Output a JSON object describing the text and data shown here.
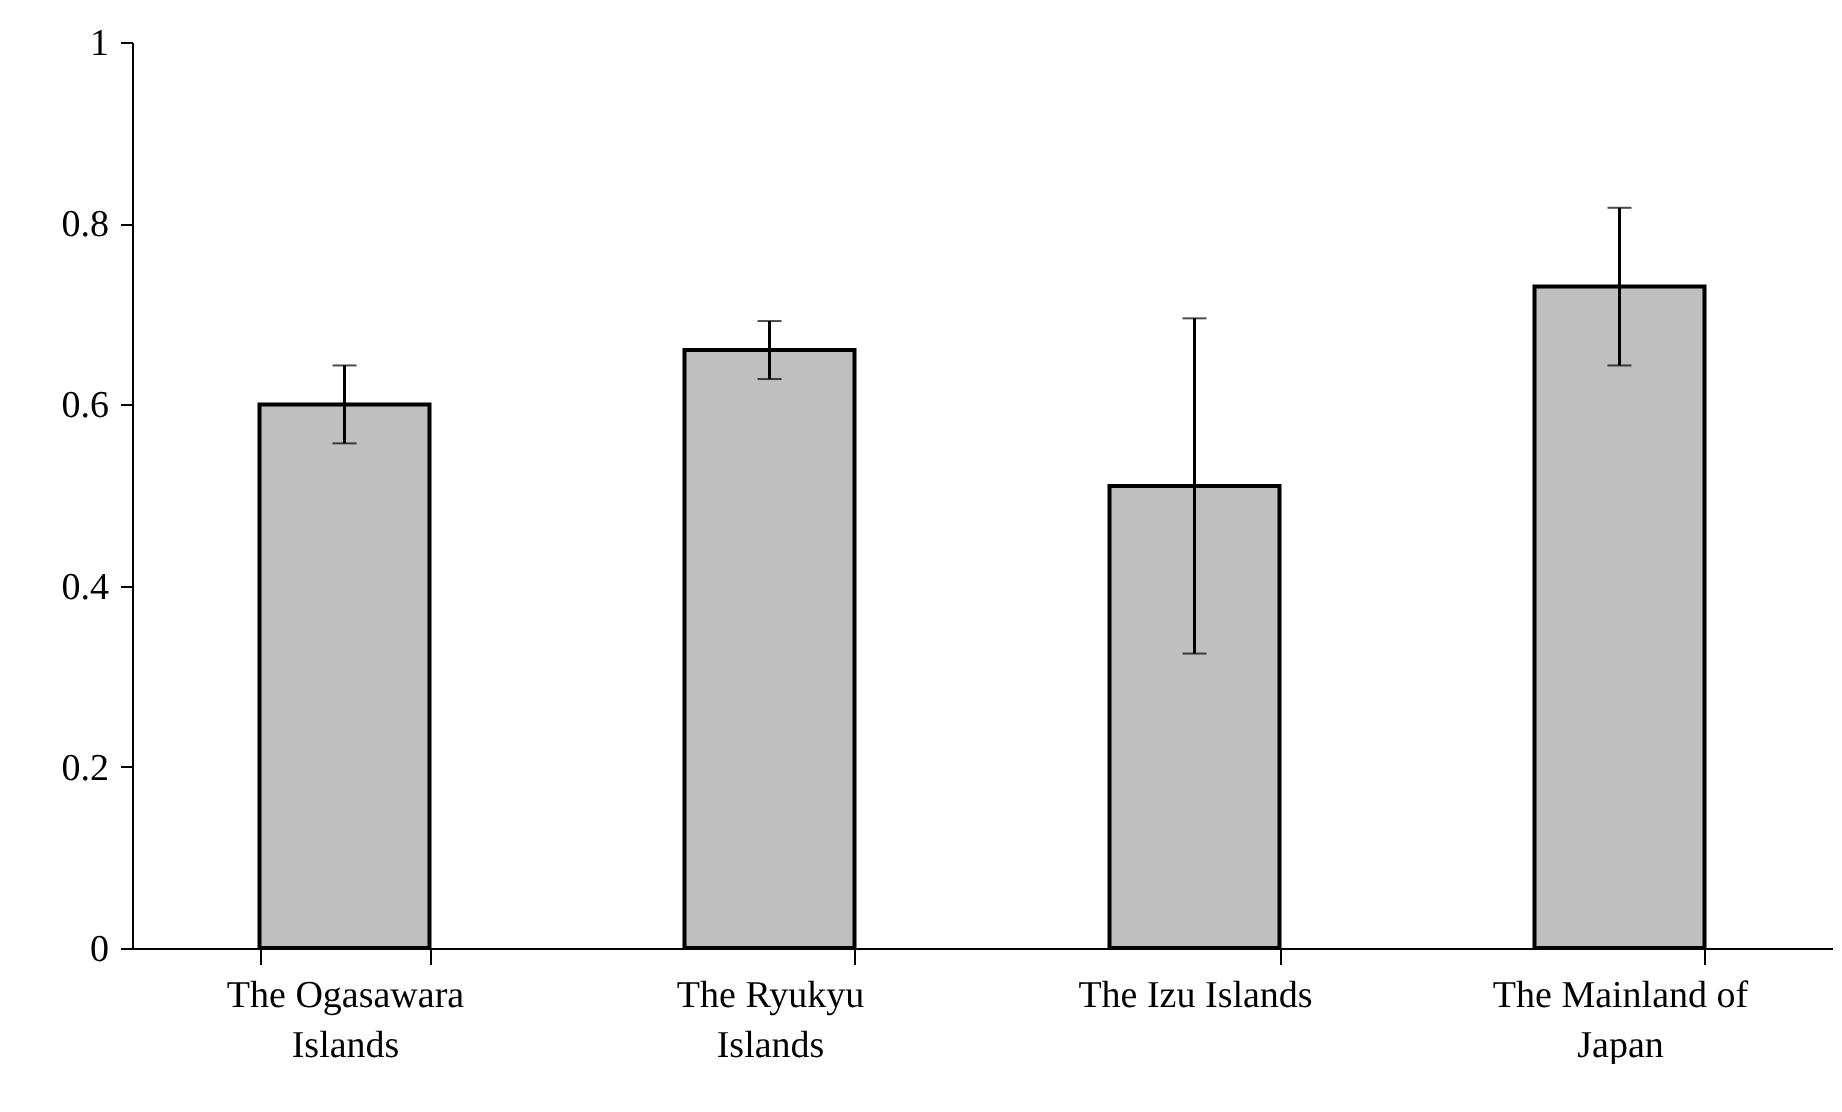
{
  "chart_data": {
    "type": "bar",
    "categories": [
      "The Ogasawara Islands",
      "The Ryukyu Islands",
      "The Izu Islands",
      "The Mainland of Japan"
    ],
    "values": [
      0.6,
      0.66,
      0.51,
      0.73
    ],
    "errors": [
      0.043,
      0.032,
      0.185,
      0.087
    ],
    "color": "#bfbfbf",
    "ylim": [
      0,
      1
    ],
    "yticks": [
      0,
      0.2,
      0.4,
      0.6,
      0.8,
      1
    ],
    "grid": false
  }
}
